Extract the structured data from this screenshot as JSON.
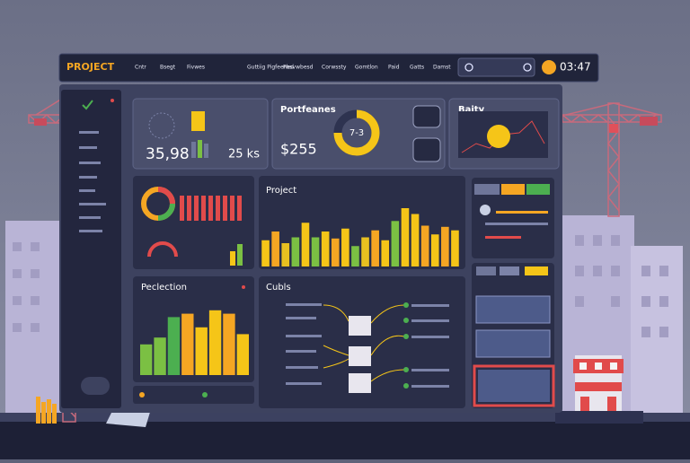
{
  "nav": {
    "brand": "PROJECT",
    "items": [
      "Cntr",
      "Bsegt",
      "Fivwes",
      "Guttiig Pigfeened",
      "Pbsvwbesd",
      "Corwssty",
      "Gomtlon",
      "Paid",
      "Gatts",
      "Damst"
    ],
    "time": "03:47"
  },
  "cards": [
    {
      "value1": "35,98",
      "value2": "25 ks"
    },
    {
      "title": "Portfeanes",
      "value": "$255",
      "gauge_label": "7-3"
    },
    {
      "title": "Baity"
    }
  ],
  "panels": {
    "project": {
      "title": "Project",
      "ylim": [
        0,
        100
      ],
      "values": [
        45,
        60,
        40,
        50,
        75,
        50,
        60,
        48,
        65,
        35,
        50,
        62,
        45,
        78,
        100,
        90,
        70,
        55,
        68,
        62
      ],
      "colors": [
        "#f5c518",
        "#f5a623",
        "#e8c020",
        "#7bc043",
        "#f5c518",
        "#7bc043",
        "#f5c518",
        "#f5a623",
        "#f5c518",
        "#7bc043",
        "#e8c020",
        "#f5a623",
        "#f5c518",
        "#7bc043",
        "#f5c518",
        "#f5c518",
        "#f5a623",
        "#f5c518",
        "#f5a623",
        "#f5c518"
      ]
    },
    "peclection": {
      "title": "Peclection",
      "ylim": [
        0,
        100
      ],
      "values": [
        45,
        55,
        85,
        90,
        70,
        95,
        90,
        60
      ],
      "colors": [
        "#7bc043",
        "#7bc043",
        "#4caf50",
        "#f5a623",
        "#f5c518",
        "#f5c518",
        "#f5a623",
        "#f5c518"
      ]
    },
    "cubls": {
      "title": "Cubls"
    }
  }
}
